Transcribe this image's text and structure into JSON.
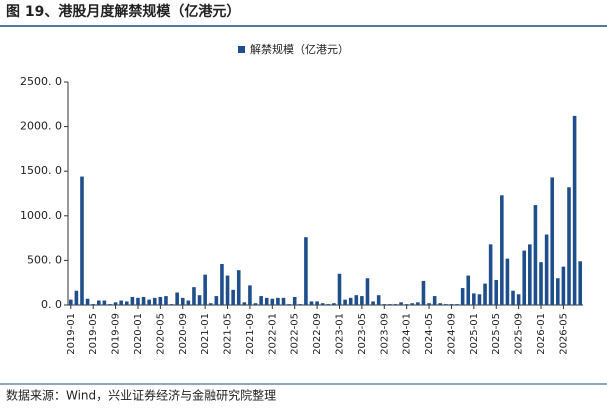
{
  "chart_data": {
    "type": "bar",
    "title": "图 19、港股月度解禁规模（亿港元）",
    "source": "数据来源：Wind，兴业证券经济与金融研究院整理",
    "categories": [
      "2019-01",
      null,
      null,
      null,
      "2019-05",
      null,
      null,
      null,
      "2019-09",
      null,
      null,
      null,
      "2020-01",
      null,
      null,
      null,
      "2020-05",
      null,
      null,
      null,
      "2020-09",
      null,
      null,
      null,
      "2021-01",
      null,
      null,
      null,
      "2021-05",
      null,
      null,
      null,
      "2021-09",
      null,
      null,
      null,
      "2022-01",
      null,
      null,
      null,
      "2022-05",
      null,
      null,
      null,
      "2022-09",
      null,
      null,
      null,
      "2023-01",
      null,
      null,
      null,
      "2023-05",
      null,
      null,
      null,
      "2023-09",
      null,
      null,
      null,
      "2024-01",
      null,
      null,
      null,
      "2024-05",
      null,
      null,
      null,
      "2024-09",
      null,
      null,
      null,
      "2025-01",
      null,
      null,
      null,
      "2025-05",
      null,
      null,
      null,
      "2025-09",
      null,
      null,
      null,
      "2026-01",
      null,
      null,
      null,
      "2026-05",
      null,
      null,
      null
    ],
    "series": [
      {
        "name": "解禁规模（亿港元）",
        "color": "#1f4e8c",
        "values": [
          60,
          160,
          1440,
          70,
          10,
          50,
          50,
          10,
          30,
          50,
          40,
          90,
          80,
          90,
          60,
          80,
          90,
          100,
          10,
          140,
          80,
          50,
          200,
          110,
          340,
          20,
          100,
          460,
          330,
          170,
          390,
          30,
          220,
          20,
          100,
          80,
          70,
          80,
          80,
          10,
          90,
          10,
          760,
          40,
          40,
          20,
          10,
          20,
          350,
          60,
          80,
          110,
          100,
          300,
          40,
          110,
          10,
          10,
          10,
          30,
          10,
          20,
          30,
          270,
          20,
          100,
          20,
          10,
          10,
          10,
          190,
          330,
          130,
          120,
          240,
          680,
          280,
          1230,
          520,
          160,
          120,
          610,
          680,
          1120,
          480,
          790,
          1430,
          300,
          430,
          1320,
          2120,
          490
        ]
      }
    ],
    "ylim": [
      0,
      2500
    ],
    "yticks": [
      {
        "value": 0,
        "label": "0. 0"
      },
      {
        "value": 500,
        "label": "500. 0"
      },
      {
        "value": 1000,
        "label": "1000. 0"
      },
      {
        "value": 1500,
        "label": "1500. 0"
      },
      {
        "value": 2000,
        "label": "2000. 0"
      },
      {
        "value": 2500,
        "label": "2500. 0"
      }
    ]
  }
}
